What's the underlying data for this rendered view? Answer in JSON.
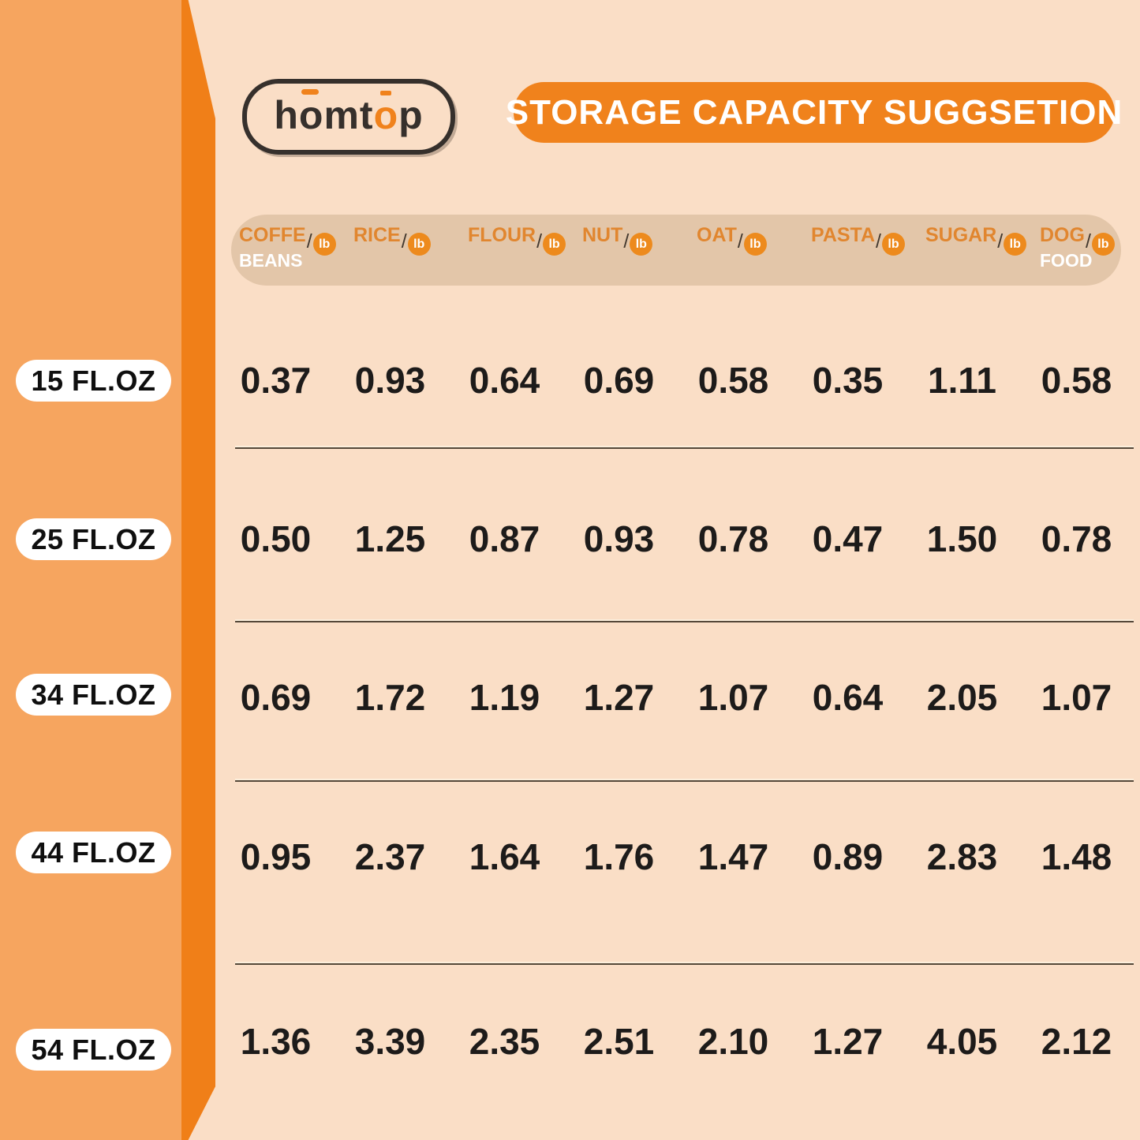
{
  "brand": {
    "logo_text": "homtop"
  },
  "header": {
    "title": "STORAGE CAPACITY SUGGSETION"
  },
  "table": {
    "unit_label": "lb",
    "columns": [
      {
        "name": "COFFE",
        "sub": "BEANS",
        "unit": "lb"
      },
      {
        "name": "RICE",
        "sub": "",
        "unit": "lb"
      },
      {
        "name": "FLOUR",
        "sub": "",
        "unit": "lb"
      },
      {
        "name": "NUT",
        "sub": "",
        "unit": "lb"
      },
      {
        "name": "OAT",
        "sub": "",
        "unit": "lb"
      },
      {
        "name": "PASTA",
        "sub": "",
        "unit": "lb"
      },
      {
        "name": "SUGAR",
        "sub": "",
        "unit": "lb"
      },
      {
        "name": "DOG",
        "sub": "FOOD",
        "unit": "lb"
      }
    ],
    "rows": [
      {
        "label": "15 FL.OZ",
        "values": [
          "0.37",
          "0.93",
          "0.64",
          "0.69",
          "0.58",
          "0.35",
          "1.11",
          "0.58"
        ]
      },
      {
        "label": "25 FL.OZ",
        "values": [
          "0.50",
          "1.25",
          "0.87",
          "0.93",
          "0.78",
          "0.47",
          "1.50",
          "0.78"
        ]
      },
      {
        "label": "34 FL.OZ",
        "values": [
          "0.69",
          "1.72",
          "1.19",
          "1.27",
          "1.07",
          "0.64",
          "2.05",
          "1.07"
        ]
      },
      {
        "label": "44 FL.OZ",
        "values": [
          "0.95",
          "2.37",
          "1.64",
          "1.76",
          "1.47",
          "0.89",
          "2.83",
          "1.48"
        ]
      },
      {
        "label": "54 FL.OZ",
        "values": [
          "1.36",
          "3.39",
          "2.35",
          "2.51",
          "2.10",
          "1.27",
          "4.05",
          "2.12"
        ]
      }
    ]
  },
  "colors": {
    "background": "#FADEC6",
    "sidebar": "#F6A55F",
    "stripe": "#F07F18",
    "accent_orange": "#F0821C",
    "header_bar": "#E3C6A9",
    "header_text_orange": "#E1862F",
    "unit_badge": "#ED8A1D",
    "text_dark": "#1D1B1A",
    "pill_background": "#FFFFFF"
  },
  "chart_data": {
    "type": "table",
    "title": "STORAGE CAPACITY SUGGSETION",
    "unit": "lb",
    "columns": [
      "COFFE BEANS",
      "RICE",
      "FLOUR",
      "NUT",
      "OAT",
      "PASTA",
      "SUGAR",
      "DOG FOOD"
    ],
    "row_labels": [
      "15 FL.OZ",
      "25 FL.OZ",
      "34 FL.OZ",
      "44 FL.OZ",
      "54 FL.OZ"
    ],
    "values": [
      [
        0.37,
        0.93,
        0.64,
        0.69,
        0.58,
        0.35,
        1.11,
        0.58
      ],
      [
        0.5,
        1.25,
        0.87,
        0.93,
        0.78,
        0.47,
        1.5,
        0.78
      ],
      [
        0.69,
        1.72,
        1.19,
        1.27,
        1.07,
        0.64,
        2.05,
        1.07
      ],
      [
        0.95,
        2.37,
        1.64,
        1.76,
        1.47,
        0.89,
        2.83,
        1.48
      ],
      [
        1.36,
        3.39,
        2.35,
        2.51,
        2.1,
        1.27,
        4.05,
        2.12
      ]
    ]
  }
}
